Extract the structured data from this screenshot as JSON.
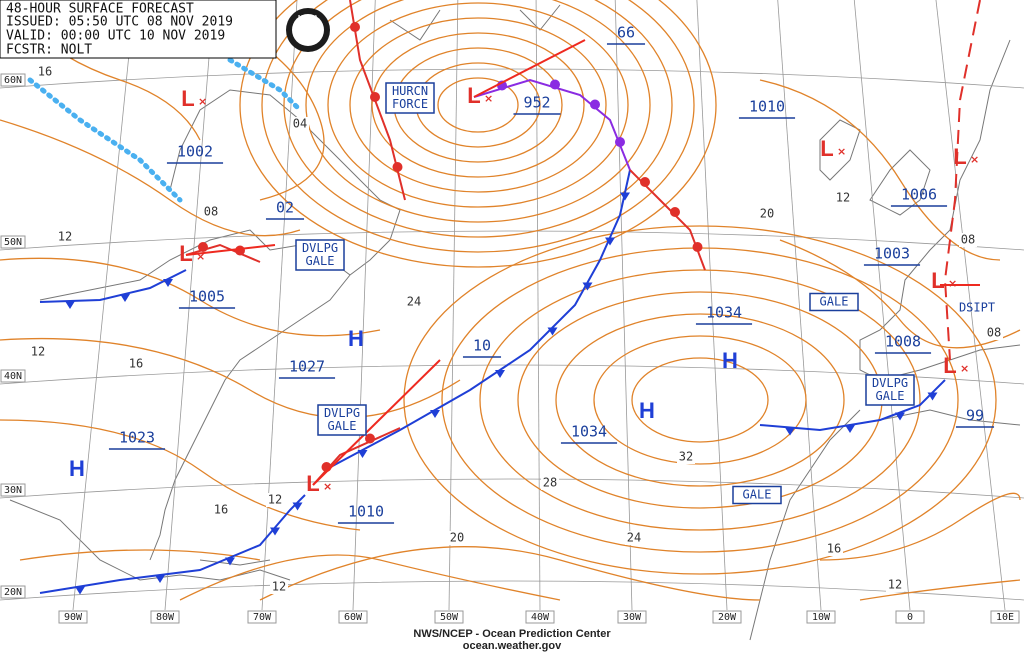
{
  "header": {
    "lines": [
      "48-HOUR SURFACE FORECAST",
      "ISSUED: 05:50 UTC 08 NOV 2019",
      "VALID:  00:00 UTC 10 NOV 2019",
      "FCSTR: NOLT"
    ],
    "logo": "NOAA"
  },
  "footer": {
    "agency": "NWS/NCEP - Ocean Prediction Center",
    "site": "ocean.weather.gov"
  },
  "longitudes": [
    "90W",
    "80W",
    "70W",
    "60W",
    "50W",
    "40W",
    "30W",
    "20W",
    "10W",
    "0",
    "10E"
  ],
  "latitudes": [
    "60N",
    "50N",
    "40N",
    "30N",
    "20N"
  ],
  "pressure_labels": [
    "1002",
    "02",
    "1005",
    "1027",
    "1023",
    "1010",
    "10",
    "1034",
    "1034",
    "952",
    "66",
    "1010",
    "1006",
    "1003",
    "1008",
    "99"
  ],
  "isobar_labels": [
    "16",
    "04",
    "08",
    "12",
    "24",
    "12",
    "16",
    "20",
    "12",
    "08",
    "08",
    "32",
    "28",
    "16",
    "12",
    "20",
    "24",
    "16",
    "12",
    "12"
  ],
  "warnings": [
    [
      "HURCN",
      "FORCE"
    ],
    [
      "DVLPG",
      "GALE"
    ],
    [
      "DVLPG",
      "GALE"
    ],
    [
      "DVLPG",
      "GALE"
    ],
    [
      "GALE"
    ],
    [
      "GALE"
    ]
  ],
  "notes": [
    "DSIPT"
  ],
  "highs": [
    "H",
    "H",
    "H",
    "H"
  ],
  "lows": [
    "L",
    "L",
    "L",
    "L",
    "L",
    "L",
    "L",
    "L"
  ]
}
